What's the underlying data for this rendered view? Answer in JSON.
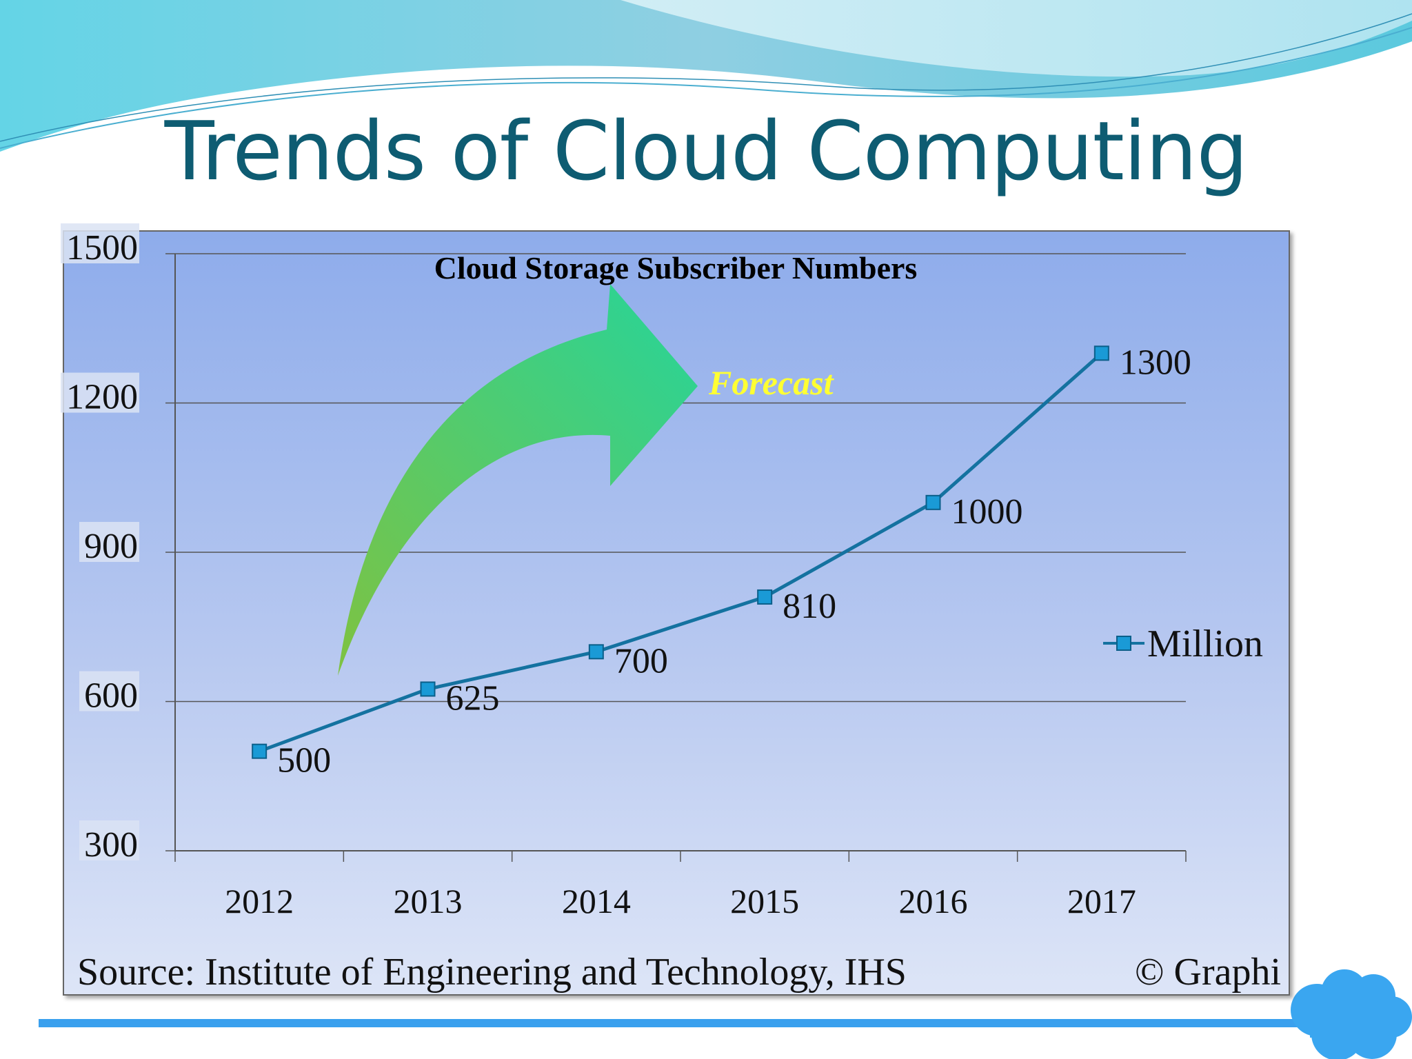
{
  "slide": {
    "title": "Trends of Cloud Computing",
    "source": "Source: Institute of Engineering and Technology, IHS",
    "copyright": "© Graphi"
  },
  "colors": {
    "title": "#0e5c72",
    "line": "#1472a0",
    "marker": "#1a9ad6",
    "forecast_text": "#ffff33",
    "arrow_start": "#7fc241",
    "arrow_end": "#26d49a",
    "bottom_bar": "#3aa0ee",
    "cloud": "#3aa6f0"
  },
  "chart_data": {
    "type": "line",
    "title": "Cloud Storage Subscriber Numbers",
    "annotation": "Forecast",
    "categories": [
      "2012",
      "2013",
      "2014",
      "2015",
      "2016",
      "2017"
    ],
    "series": [
      {
        "name": "Million",
        "values": [
          500,
          625,
          700,
          810,
          1000,
          1300
        ]
      }
    ],
    "y_ticks": [
      300,
      600,
      900,
      1200,
      1500
    ],
    "ylim": [
      300,
      1500
    ],
    "grid": true,
    "legend": "right",
    "data_labels": true
  }
}
